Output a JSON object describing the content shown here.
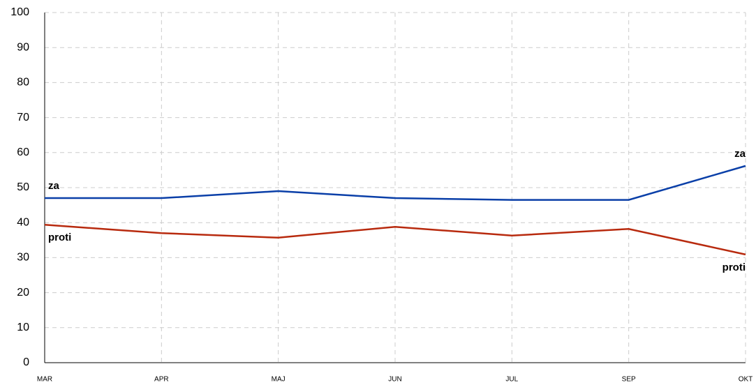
{
  "chart_data": {
    "type": "line",
    "categories": [
      "MAR",
      "APR",
      "MAJ",
      "JUN",
      "JUL",
      "SEP",
      "OKT"
    ],
    "series": [
      {
        "name": "za",
        "color": "#0a3fa8",
        "values": [
          47,
          47,
          49,
          47,
          46.5,
          46.5,
          56.2
        ]
      },
      {
        "name": "proti",
        "color": "#b82a0e",
        "values": [
          39.4,
          37,
          35.7,
          38.8,
          36.3,
          38.2,
          30.9
        ]
      }
    ],
    "ylim": [
      0,
      100
    ],
    "yticks": [
      0,
      10,
      20,
      30,
      40,
      50,
      60,
      70,
      80,
      90,
      100
    ],
    "grid": true
  }
}
